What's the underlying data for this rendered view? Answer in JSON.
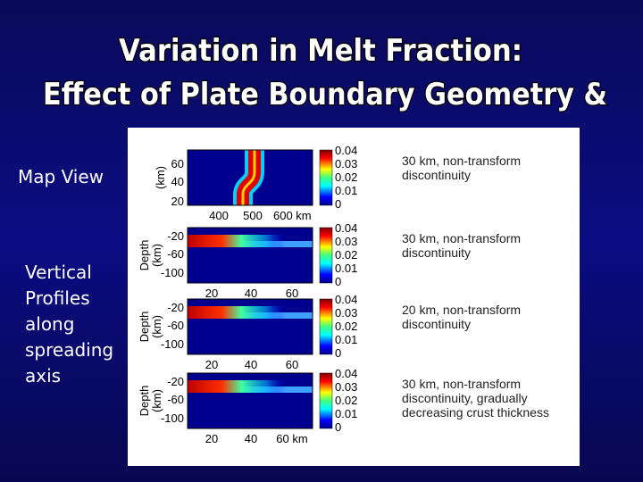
{
  "title": {
    "lines": [
      "Variation in Melt Fraction:",
      "Effect of Plate Boundary Geometry &"
    ]
  },
  "side_labels": {
    "map_view": "Map View",
    "profiles": [
      "Vertical",
      "Profiles",
      "along",
      "spreading",
      "axis"
    ]
  },
  "figure": {
    "panels": [
      {
        "y_label": [
          "(km)"
        ],
        "y_ticks": [
          "60",
          "40",
          "20"
        ],
        "x_ticks": [
          "400",
          "500",
          "600 km"
        ],
        "colorbar_labels": [
          "0.04",
          "0.03",
          "0.02",
          "0.01",
          "0"
        ],
        "caption": [
          "30 km, non-transform",
          "discontinuity"
        ]
      },
      {
        "y_label": [
          "Depth",
          "(km)"
        ],
        "y_ticks": [
          "-20",
          "-60",
          "-100"
        ],
        "x_ticks": [
          "20",
          "40",
          "60"
        ],
        "colorbar_labels": [
          "0.04",
          "0.03",
          "0.02",
          "0.01",
          "0"
        ],
        "caption": [
          "30 km, non-transform",
          "discontinuity"
        ]
      },
      {
        "y_label": [
          "Depth",
          "(km)"
        ],
        "y_ticks": [
          "-20",
          "-60",
          "-100"
        ],
        "x_ticks": [
          "20",
          "40",
          "60"
        ],
        "colorbar_labels": [
          "0.04",
          "0.03",
          "0.02",
          "0.01",
          "0"
        ],
        "caption": [
          "20 km, non-transform",
          "discontinuity"
        ]
      },
      {
        "y_label": [
          "Depth",
          "(km)"
        ],
        "y_ticks": [
          "-20",
          "-60",
          "-100"
        ],
        "x_ticks": [
          "20",
          "40",
          "60 km"
        ],
        "colorbar_labels": [
          "0.04",
          "0.03",
          "0.02",
          "0.01",
          "0"
        ],
        "caption": [
          "30 km, non-transform",
          "discontinuity, gradually",
          "decreasing crust thickness"
        ]
      }
    ]
  }
}
